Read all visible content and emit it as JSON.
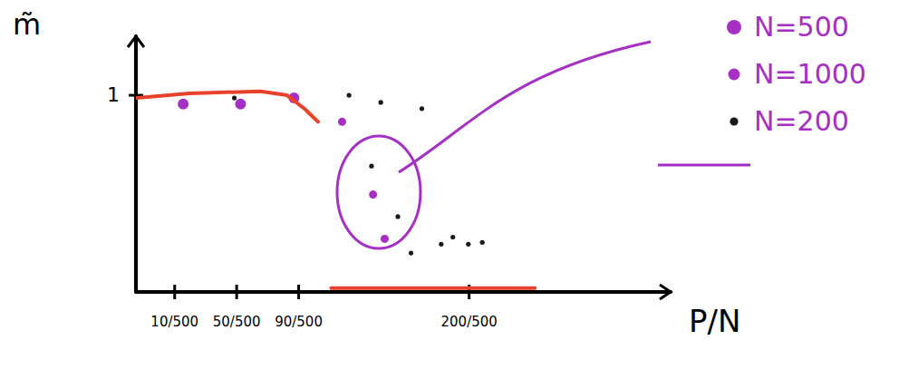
{
  "chart_data": {
    "type": "scatter",
    "x_label": "P/N",
    "y_label": "m̃",
    "xlim": [
      -0.03,
      0.66
    ],
    "ylim": [
      0,
      1.3
    ],
    "xticks": [
      {
        "value": 0.02,
        "label": "10/500"
      },
      {
        "value": 0.1,
        "label": "50/500"
      },
      {
        "value": 0.18,
        "label": "90/500"
      },
      {
        "value": 0.4,
        "label": "200/500"
      }
    ],
    "yticks": [
      1
    ],
    "legend": "right",
    "series": [
      {
        "name": "N=500",
        "color": "#a62fc4",
        "marker": "big-dot",
        "x": [
          0.031,
          0.105,
          0.174
        ],
        "values": [
          0.955,
          0.955,
          0.986
        ]
      },
      {
        "name": "N=1000",
        "color": "#a62fc4",
        "marker": "dot",
        "x": [
          0.236,
          0.276,
          0.291
        ],
        "values": [
          0.865,
          0.495,
          0.27
        ]
      },
      {
        "name": "N=200",
        "color": "#1a1a1a",
        "marker": "small-dot",
        "x": [
          0.097,
          0.245,
          0.286,
          0.339,
          0.274,
          0.308,
          0.325,
          0.364,
          0.379,
          0.399,
          0.417
        ],
        "values": [
          0.986,
          1.0,
          0.964,
          0.932,
          0.64,
          0.383,
          0.198,
          0.243,
          0.279,
          0.243,
          0.252
        ]
      },
      {
        "type": "line",
        "color": "#e8422a",
        "line_style": "solid",
        "x": [
          -0.029,
          0.039,
          0.131,
          0.165,
          0.188,
          0.205,
          0.213,
          0.222,
          0.35,
          0.485
        ],
        "values": [
          0.986,
          1.01,
          1.02,
          1.0,
          0.93,
          0.865,
          null,
          0.02,
          0.02,
          0.02
        ]
      }
    ]
  }
}
